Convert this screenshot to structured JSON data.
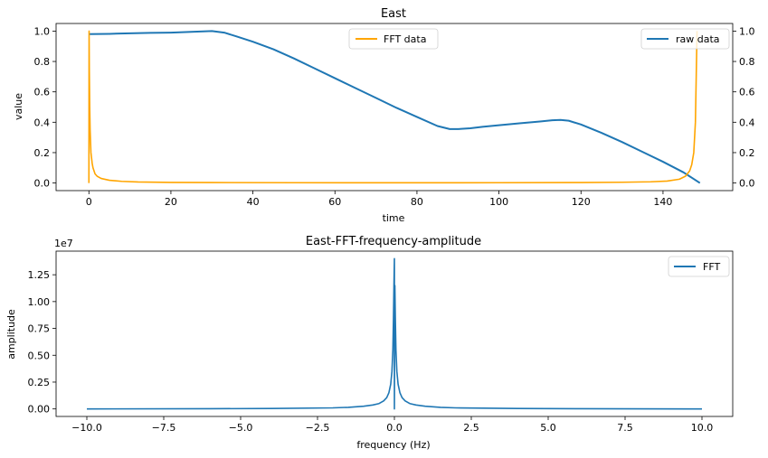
{
  "chart_data": [
    {
      "type": "line",
      "title": "East",
      "xlabel": "time",
      "ylabel": "value",
      "xlim": [
        -8,
        157
      ],
      "ylim": [
        -0.05,
        1.05
      ],
      "y2lim": [
        -0.05,
        1.05
      ],
      "grid": false,
      "x_ticks": [
        0,
        20,
        40,
        60,
        80,
        100,
        120,
        140
      ],
      "x_tick_labels": [
        "0",
        "20",
        "40",
        "60",
        "80",
        "100",
        "120",
        "140"
      ],
      "y_ticks": [
        0.0,
        0.2,
        0.4,
        0.6,
        0.8,
        1.0
      ],
      "y_tick_labels": [
        "0.0",
        "0.2",
        "0.4",
        "0.6",
        "0.8",
        "1.0"
      ],
      "y2_tick_labels": [
        "0.0",
        "0.2",
        "0.4",
        "0.6",
        "0.8",
        "1.0"
      ],
      "series": [
        {
          "name": "raw data",
          "axis": "right",
          "color": "#1f77b4",
          "legend_position": "upper right",
          "x": [
            0,
            5,
            10,
            15,
            20,
            25,
            30,
            33,
            36,
            40,
            45,
            50,
            55,
            60,
            65,
            70,
            75,
            80,
            85,
            88,
            90,
            93,
            96,
            100,
            105,
            110,
            113,
            115,
            117,
            120,
            125,
            130,
            135,
            140,
            145,
            149
          ],
          "y": [
            0.98,
            0.982,
            0.985,
            0.988,
            0.99,
            0.995,
            1.0,
            0.99,
            0.965,
            0.93,
            0.88,
            0.82,
            0.755,
            0.69,
            0.625,
            0.56,
            0.495,
            0.435,
            0.375,
            0.355,
            0.355,
            0.36,
            0.37,
            0.38,
            0.393,
            0.405,
            0.413,
            0.415,
            0.41,
            0.385,
            0.33,
            0.27,
            0.205,
            0.14,
            0.07,
            0.0
          ]
        },
        {
          "name": "FFT data",
          "axis": "left",
          "color": "#ffa500",
          "legend_position": "upper center",
          "x": [
            0,
            0.05,
            0.1,
            0.2,
            0.3,
            0.5,
            0.8,
            1,
            1.5,
            2,
            3,
            5,
            8,
            12,
            20,
            30,
            50,
            74.5,
            100,
            120,
            130,
            137,
            141,
            144,
            145.5,
            146.5,
            147,
            147.5,
            147.9,
            148.1,
            148.3
          ],
          "y": [
            0.0,
            1.0,
            0.75,
            0.5,
            0.35,
            0.2,
            0.13,
            0.1,
            0.06,
            0.045,
            0.03,
            0.018,
            0.011,
            0.007,
            0.004,
            0.003,
            0.002,
            0.0015,
            0.002,
            0.003,
            0.005,
            0.008,
            0.013,
            0.025,
            0.045,
            0.08,
            0.12,
            0.2,
            0.4,
            0.7,
            1.0
          ]
        }
      ]
    },
    {
      "type": "line",
      "title": "East-FFT-frequency-amplitude",
      "xlabel": "frequency (Hz)",
      "ylabel": "amplitude",
      "y_offset_label": "1e7",
      "xlim": [
        -11,
        11
      ],
      "ylim": [
        -0.07,
        1.47
      ],
      "grid": false,
      "legend_position": "upper right",
      "x_ticks": [
        -10,
        -7.5,
        -5,
        -2.5,
        0,
        2.5,
        5,
        7.5,
        10
      ],
      "x_tick_labels": [
        "−10.0",
        "−7.5",
        "−5.0",
        "−2.5",
        "0.0",
        "2.5",
        "5.0",
        "7.5",
        "10.0"
      ],
      "y_ticks": [
        0.0,
        0.25,
        0.5,
        0.75,
        1.0,
        1.25
      ],
      "y_tick_labels": [
        "0.00",
        "0.25",
        "0.50",
        "0.75",
        "1.00",
        "1.25"
      ],
      "series": [
        {
          "name": "FFT",
          "color": "#1f77b4",
          "x": [
            -10,
            -6,
            -4,
            -2,
            -1.5,
            -1,
            -0.7,
            -0.5,
            -0.35,
            -0.25,
            -0.18,
            -0.12,
            -0.08,
            -0.05,
            -0.03,
            -0.015,
            0,
            0,
            0.015,
            0.03,
            0.05,
            0.08,
            0.12,
            0.18,
            0.25,
            0.35,
            0.5,
            0.7,
            1,
            1.5,
            2,
            4,
            6,
            10
          ],
          "y": [
            0.0,
            0.002,
            0.004,
            0.01,
            0.015,
            0.025,
            0.037,
            0.05,
            0.075,
            0.105,
            0.15,
            0.23,
            0.35,
            0.55,
            0.85,
            1.15,
            1.4,
            0.0,
            1.15,
            0.85,
            0.55,
            0.35,
            0.23,
            0.15,
            0.105,
            0.075,
            0.05,
            0.037,
            0.025,
            0.015,
            0.01,
            0.004,
            0.002,
            0.0
          ]
        }
      ]
    }
  ]
}
